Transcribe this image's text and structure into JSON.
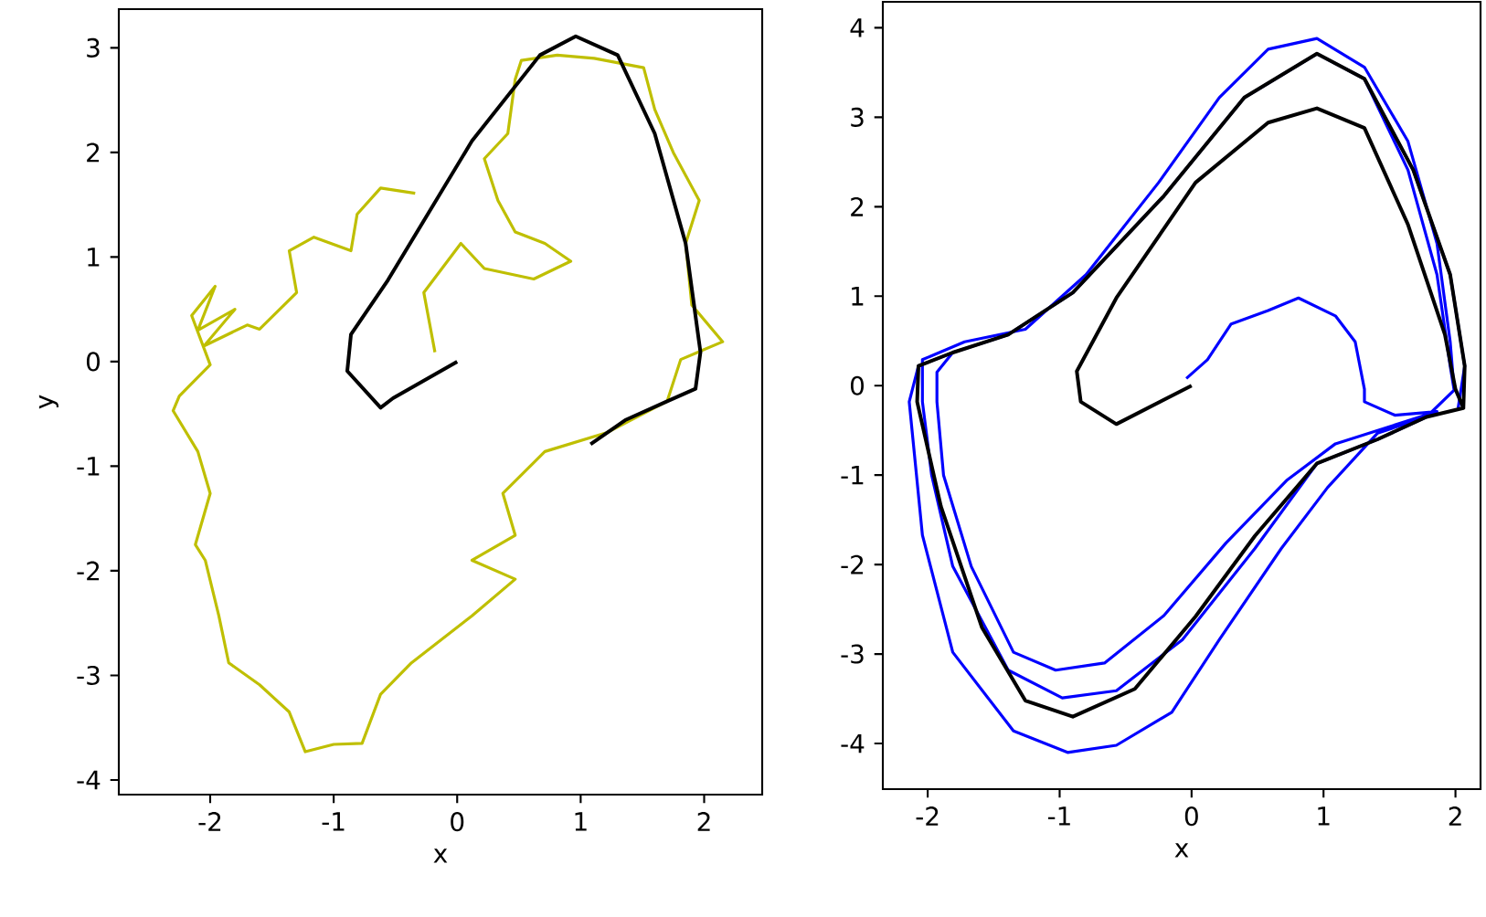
{
  "chart_data": [
    {
      "type": "line",
      "xlabel": "x",
      "ylabel": "y",
      "xlim": [
        -2.74,
        2.47
      ],
      "ylim": [
        -4.14,
        3.37
      ],
      "xticks": [
        -2,
        -1,
        0,
        1,
        2
      ],
      "yticks": [
        -4,
        -3,
        -2,
        -1,
        0,
        1,
        2,
        3
      ],
      "series": [
        {
          "color": "#bfbf00",
          "x": [
            -0.18,
            -0.27,
            0.03,
            0.22,
            0.62,
            0.92,
            0.71,
            0.47,
            0.33,
            0.22,
            0.41,
            0.47,
            0.52,
            0.81,
            1.11,
            1.51,
            1.6,
            1.75,
            1.96,
            1.85,
            1.9,
            2.15,
            1.81,
            1.7,
            1.21,
            0.71,
            0.37,
            0.47,
            0.12,
            0.47,
            0.12,
            -0.37,
            -0.62,
            -0.77,
            -1.0,
            -1.23,
            -1.36,
            -1.6,
            -1.85,
            -1.93,
            -2.04,
            -2.12,
            -2.0,
            -2.1,
            -2.3,
            -2.25,
            -2.0,
            -2.15,
            -1.96,
            -2.1,
            -1.8,
            -2.05,
            -1.7,
            -1.6,
            -1.3,
            -1.36,
            -1.16,
            -0.86,
            -0.81,
            -0.62,
            -0.34
          ],
          "values": [
            0.09,
            0.66,
            1.13,
            0.89,
            0.79,
            0.96,
            1.13,
            1.24,
            1.54,
            1.94,
            2.18,
            2.7,
            2.88,
            2.93,
            2.9,
            2.81,
            2.41,
            2.0,
            1.54,
            1.13,
            0.54,
            0.19,
            0.02,
            -0.38,
            -0.68,
            -0.86,
            -1.26,
            -1.66,
            -1.9,
            -2.08,
            -2.43,
            -2.88,
            -3.18,
            -3.65,
            -3.66,
            -3.73,
            -3.35,
            -3.09,
            -2.88,
            -2.43,
            -1.9,
            -1.75,
            -1.26,
            -0.86,
            -0.47,
            -0.33,
            -0.03,
            0.44,
            0.72,
            0.3,
            0.5,
            0.15,
            0.35,
            0.31,
            0.66,
            1.06,
            1.19,
            1.06,
            1.41,
            1.66,
            1.61
          ]
        },
        {
          "color": "#000000",
          "x": [
            0.0,
            -0.52,
            -0.62,
            -0.89,
            -0.86,
            -0.56,
            0.12,
            0.67,
            0.96,
            1.3,
            1.6,
            1.85,
            1.97,
            1.93,
            1.7,
            1.36,
            1.08
          ],
          "values": [
            0.0,
            -0.35,
            -0.44,
            -0.09,
            0.26,
            0.78,
            2.11,
            2.93,
            3.11,
            2.93,
            2.18,
            1.13,
            0.09,
            -0.26,
            -0.38,
            -0.56,
            -0.79
          ]
        }
      ]
    },
    {
      "type": "line",
      "xlabel": "x",
      "xlim": [
        -2.34,
        2.19
      ],
      "ylim": [
        -4.51,
        4.29
      ],
      "xticks": [
        -2,
        -1,
        0,
        1,
        2
      ],
      "yticks": [
        -4,
        -3,
        -2,
        -1,
        0,
        1,
        2,
        3,
        4
      ],
      "series": [
        {
          "color": "#0000ff",
          "x": [
            -0.04,
            0.12,
            0.3,
            0.58,
            0.81,
            1.09,
            1.24,
            1.31,
            1.31,
            1.54,
            1.86,
            1.09,
            0.72,
            0.26,
            -0.21,
            -0.66,
            -1.03,
            -1.35,
            -1.67,
            -1.88,
            -1.93,
            -1.93,
            -1.81,
            -1.39,
            -0.9,
            -0.21,
            0.4,
            0.95,
            1.31,
            1.64,
            1.86,
            1.96,
            1.99,
            1.78,
            1.41,
            0.95,
            0.48,
            -0.07,
            -0.57,
            -0.98,
            -1.39,
            -1.81,
            -1.97,
            -2.04,
            -2.04,
            -1.72,
            -1.26,
            -0.8,
            -0.25,
            0.21,
            0.58,
            0.95,
            1.31,
            1.64,
            1.86,
            1.96,
            1.99,
            1.78,
            1.41,
            1.03,
            0.68,
            0.21,
            -0.15,
            -0.57,
            -0.94,
            -1.35,
            -1.81,
            -2.04,
            -2.14,
            -2.07,
            -1.81,
            -1.39,
            -0.9,
            -0.21,
            0.4,
            0.95,
            1.31,
            1.68,
            1.96,
            2.07,
            2.02
          ],
          "values": [
            0.08,
            0.29,
            0.69,
            0.84,
            0.98,
            0.78,
            0.49,
            -0.04,
            -0.18,
            -0.33,
            -0.29,
            -0.65,
            -1.06,
            -1.76,
            -2.57,
            -3.1,
            -3.18,
            -2.98,
            -2.02,
            -1.0,
            -0.18,
            0.15,
            0.37,
            0.57,
            1.04,
            2.12,
            3.22,
            3.71,
            3.43,
            2.41,
            1.24,
            0.22,
            -0.05,
            -0.35,
            -0.6,
            -0.87,
            -1.82,
            -2.84,
            -3.41,
            -3.49,
            -3.18,
            -2.02,
            -1.0,
            -0.18,
            0.29,
            0.49,
            0.63,
            1.24,
            2.27,
            3.22,
            3.76,
            3.88,
            3.56,
            2.73,
            1.59,
            0.49,
            -0.05,
            -0.35,
            -0.53,
            -1.14,
            -1.82,
            -2.84,
            -3.65,
            -4.02,
            -4.1,
            -3.86,
            -2.98,
            -1.67,
            -0.18,
            0.22,
            0.37,
            0.57,
            1.04,
            2.12,
            3.22,
            3.71,
            3.43,
            2.41,
            1.24,
            0.22,
            -0.25
          ]
        },
        {
          "color": "#000000",
          "x": [
            0.0,
            -0.57,
            -0.84,
            -0.87,
            -0.57,
            0.03,
            0.58,
            0.95,
            1.31,
            1.64,
            1.92,
            2.0,
            2.06,
            1.78,
            1.41,
            0.95,
            0.48,
            0.03,
            -0.43,
            -0.9,
            -1.26,
            -1.59,
            -1.9,
            -2.08,
            -2.07,
            -1.81,
            -1.39,
            -0.9,
            -0.21,
            0.4,
            0.95,
            1.31,
            1.68,
            1.96,
            2.07,
            2.06,
            1.78
          ],
          "values": [
            0.0,
            -0.43,
            -0.18,
            0.16,
            0.98,
            2.27,
            2.94,
            3.1,
            2.88,
            1.8,
            0.57,
            -0.04,
            -0.25,
            -0.35,
            -0.6,
            -0.87,
            -1.68,
            -2.58,
            -3.39,
            -3.7,
            -3.52,
            -2.7,
            -1.35,
            -0.18,
            0.22,
            0.37,
            0.57,
            1.04,
            2.12,
            3.22,
            3.71,
            3.43,
            2.41,
            1.24,
            0.22,
            -0.25,
            -0.35
          ]
        }
      ]
    }
  ]
}
